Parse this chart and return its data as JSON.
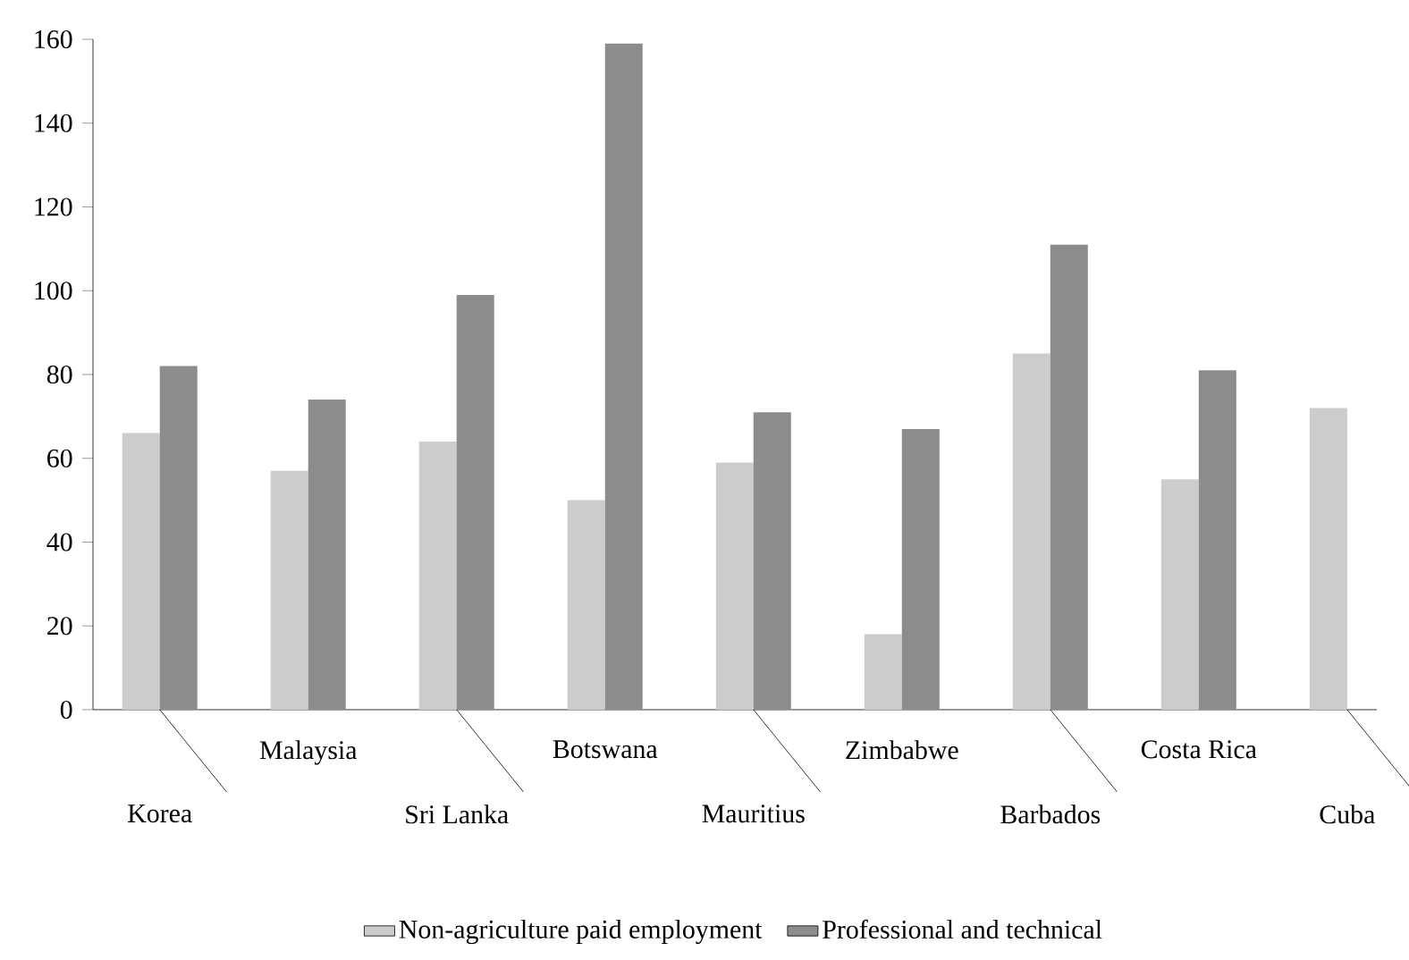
{
  "chart_data": {
    "type": "bar",
    "categories": [
      "Korea",
      "Malaysia",
      "Sri Lanka",
      "Botswana",
      "Mauritius",
      "Zimbabwe",
      "Barbados",
      "Costa Rica",
      "Cuba"
    ],
    "series": [
      {
        "name": "Non-agriculture paid employment",
        "color": "#cccccc",
        "values": [
          66,
          57,
          64,
          50,
          59,
          18,
          85,
          55,
          72
        ]
      },
      {
        "name": "Professional and technical",
        "color": "#8c8c8c",
        "values": [
          82,
          74,
          99,
          159,
          71,
          67,
          111,
          81,
          null
        ]
      }
    ],
    "ylim": [
      0,
      160
    ],
    "yticks": [
      0,
      20,
      40,
      60,
      80,
      100,
      120,
      140,
      160
    ],
    "grid": false,
    "legend": "bottom"
  }
}
